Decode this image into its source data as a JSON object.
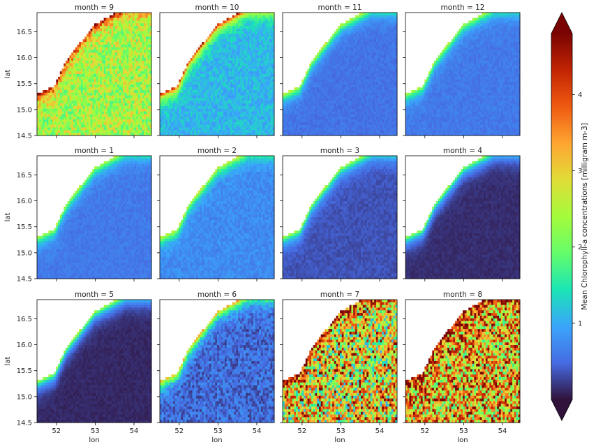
{
  "chart_data": {
    "type": "heatmap",
    "facet_variable": "month",
    "panels": [
      {
        "title": "month = 9",
        "month": 9,
        "mean_level": 2.4,
        "coast_level": 4.6,
        "noise": 0.7
      },
      {
        "title": "month = 10",
        "month": 10,
        "mean_level": 1.1,
        "coast_level": 4.4,
        "noise": 0.25
      },
      {
        "title": "month = 11",
        "month": 11,
        "mean_level": 0.55,
        "coast_level": 2.8,
        "noise": 0.1
      },
      {
        "title": "month = 12",
        "month": 12,
        "mean_level": 0.6,
        "coast_level": 2.6,
        "noise": 0.1
      },
      {
        "title": "month = 1",
        "month": 1,
        "mean_level": 0.6,
        "coast_level": 2.6,
        "noise": 0.1
      },
      {
        "title": "month = 2",
        "month": 2,
        "mean_level": 0.75,
        "coast_level": 2.8,
        "noise": 0.15
      },
      {
        "title": "month = 3",
        "month": 3,
        "mean_level": 0.35,
        "coast_level": 2.6,
        "noise": 0.08
      },
      {
        "title": "month = 4",
        "month": 4,
        "mean_level": 0.15,
        "coast_level": 2.4,
        "noise": 0.05
      },
      {
        "title": "month = 5",
        "month": 5,
        "mean_level": 0.12,
        "coast_level": 2.6,
        "noise": 0.05
      },
      {
        "title": "month = 6",
        "month": 6,
        "mean_level": 0.5,
        "coast_level": 3.4,
        "noise": 0.3
      },
      {
        "title": "month = 7",
        "month": 7,
        "mean_level": 2.6,
        "coast_level": 4.8,
        "noise": 1.6
      },
      {
        "title": "month = 8",
        "month": 8,
        "mean_level": 3.0,
        "coast_level": 4.9,
        "noise": 1.5
      }
    ],
    "x": {
      "label": "lon",
      "range": [
        51.5,
        54.45
      ],
      "ticks": [
        "52",
        "53",
        "54"
      ],
      "tick_values": [
        52,
        53,
        54
      ]
    },
    "y": {
      "label": "lat",
      "range": [
        14.5,
        16.87
      ],
      "ticks": [
        "14.5",
        "15.0",
        "15.5",
        "16.0",
        "16.5"
      ],
      "tick_values": [
        14.5,
        15.0,
        15.5,
        16.0,
        16.5
      ]
    },
    "colorbar": {
      "label": "Mean Chlorophyll-a concentrations [milligram m-3]",
      "range": [
        0,
        4.8
      ],
      "ticks": [
        "1",
        "2",
        "3",
        "4"
      ],
      "tick_values": [
        1,
        2,
        3,
        4
      ],
      "extend": "both",
      "colormap": "turbo"
    },
    "land_color": "#ffffff"
  }
}
